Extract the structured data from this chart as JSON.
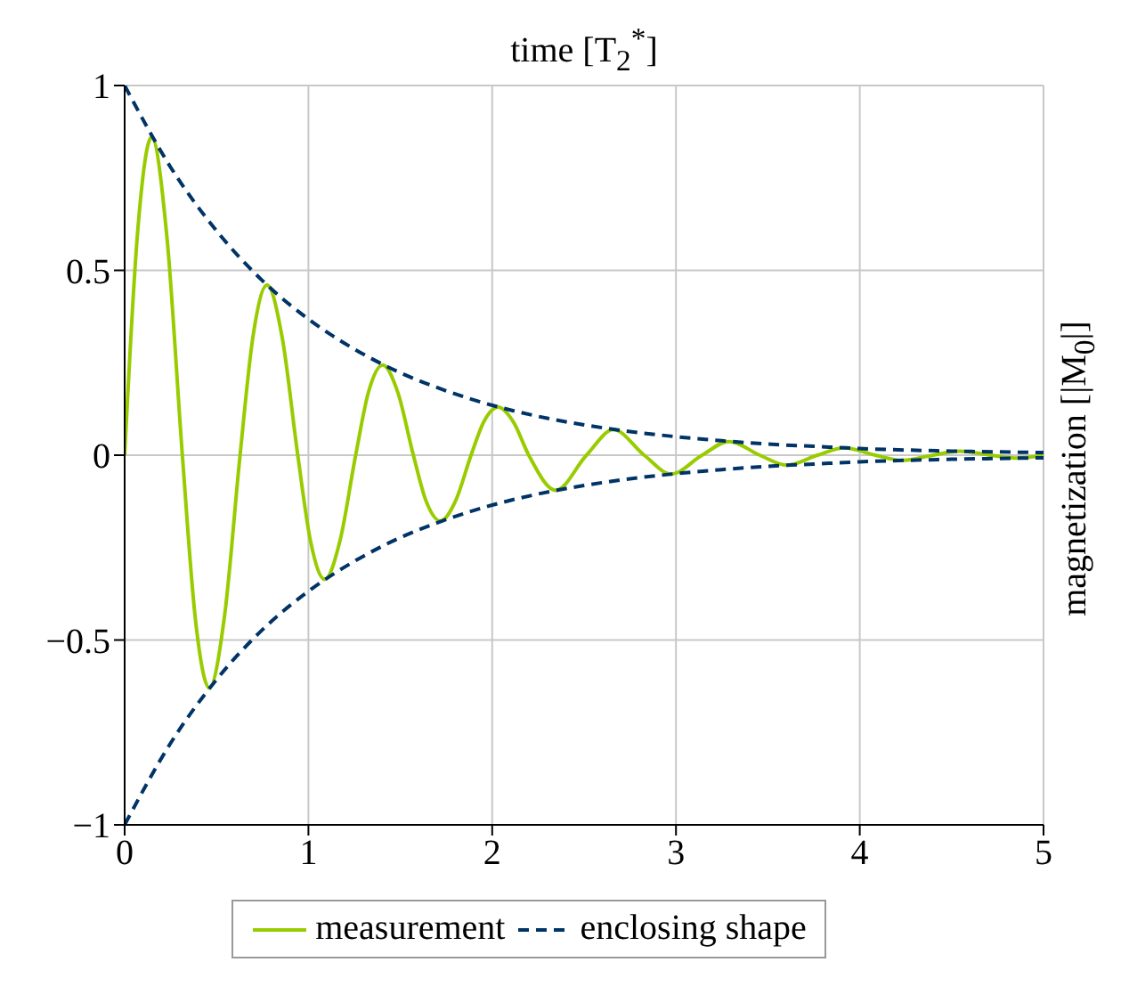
{
  "chart_data": {
    "type": "line",
    "xlabel": "time [T$_{2}$$^{*}$]",
    "ylabel": "magnetization [|M$_{0}$|]",
    "xlim": [
      0,
      5
    ],
    "ylim": [
      -1,
      1
    ],
    "xticks": [
      0,
      1,
      2,
      3,
      4,
      5
    ],
    "yticks": [
      {
        "value": -1,
        "label": "−1"
      },
      {
        "value": -0.5,
        "label": "−0.5"
      },
      0,
      0.5,
      1
    ],
    "grid": true,
    "legend": "bottom",
    "marker": "none",
    "series": [
      {
        "name": "measurement",
        "color": "#99cc00",
        "line_style": "solid",
        "x": [
          0,
          0.07,
          0.147,
          0.23,
          0.314,
          0.384,
          0.461,
          0.544,
          0.628,
          0.698,
          0.775,
          0.858,
          0.942,
          1.012,
          1.089,
          1.172,
          1.257,
          1.327,
          1.404,
          1.487,
          1.571,
          1.641,
          1.718,
          1.801,
          1.885,
          1.955,
          2.032,
          2.115,
          2.199,
          2.346,
          2.513,
          2.66,
          2.827,
          2.974,
          3.142,
          3.288,
          3.456,
          3.602,
          3.77,
          3.916,
          4.084,
          4.23,
          4.398,
          4.544,
          4.712,
          4.858,
          5
        ],
        "values": [
          0,
          0.6,
          0.86,
          0.59,
          0,
          -0.439,
          -0.63,
          -0.433,
          0,
          0.32,
          0.46,
          0.316,
          0,
          -0.234,
          -0.336,
          -0.231,
          0,
          0.171,
          0.244,
          0.169,
          0,
          -0.125,
          -0.178,
          -0.123,
          0,
          0.091,
          0.13,
          0.09,
          0,
          -0.095,
          0,
          0.069,
          0,
          -0.051,
          0,
          0.037,
          0,
          -0.027,
          0,
          0.02,
          0,
          -0.014,
          0,
          0.011,
          0,
          -0.008,
          0
        ]
      },
      {
        "name": "enclosing shape",
        "color": "#003366",
        "line_style": "dashed",
        "x": [
          0,
          0.25,
          0.5,
          0.75,
          1,
          1.25,
          1.5,
          1.75,
          2,
          2.25,
          2.5,
          2.75,
          3,
          3.25,
          3.5,
          3.75,
          4,
          4.25,
          4.5,
          4.75,
          5
        ],
        "values": [
          1,
          0.779,
          0.607,
          0.472,
          0.368,
          0.287,
          0.223,
          0.174,
          0.135,
          0.105,
          0.082,
          0.064,
          0.05,
          0.039,
          0.03,
          0.024,
          0.018,
          0.014,
          0.011,
          0.009,
          0.007
        ]
      },
      {
        "color": "#003366",
        "line_style": "dashed",
        "x": [
          0,
          0.25,
          0.5,
          0.75,
          1,
          1.25,
          1.5,
          1.75,
          2,
          2.25,
          2.5,
          2.75,
          3,
          3.25,
          3.5,
          3.75,
          4,
          4.25,
          4.5,
          4.75,
          5
        ],
        "values": [
          -1,
          -0.779,
          -0.607,
          -0.472,
          -0.368,
          -0.287,
          -0.223,
          -0.174,
          -0.135,
          -0.105,
          -0.082,
          -0.064,
          -0.05,
          -0.039,
          -0.03,
          -0.024,
          -0.018,
          -0.014,
          -0.011,
          -0.009,
          -0.007
        ]
      }
    ]
  }
}
